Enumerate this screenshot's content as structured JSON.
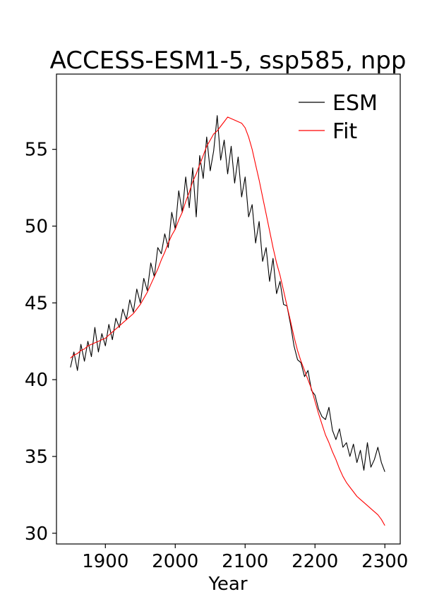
{
  "chart_data": {
    "type": "line",
    "title": "ACCESS-ESM1-5, ssp585, npp",
    "xlabel": "Year",
    "ylabel": "",
    "xlim": [
      1830,
      2322
    ],
    "ylim": [
      29.3,
      59.9
    ],
    "xticks": [
      1900,
      2000,
      2100,
      2200,
      2300
    ],
    "yticks": [
      30,
      35,
      40,
      45,
      50,
      55
    ],
    "grid": false,
    "legend_position": "top-right",
    "series": [
      {
        "name": "ESM",
        "color": "#000000",
        "x": [
          1850,
          1855,
          1860,
          1865,
          1870,
          1875,
          1880,
          1885,
          1890,
          1895,
          1900,
          1905,
          1910,
          1915,
          1920,
          1925,
          1930,
          1935,
          1940,
          1945,
          1950,
          1955,
          1960,
          1965,
          1970,
          1975,
          1980,
          1985,
          1990,
          1995,
          2000,
          2005,
          2010,
          2015,
          2020,
          2025,
          2030,
          2035,
          2040,
          2045,
          2050,
          2055,
          2060,
          2065,
          2070,
          2075,
          2080,
          2085,
          2090,
          2095,
          2100,
          2105,
          2110,
          2115,
          2120,
          2125,
          2130,
          2135,
          2140,
          2145,
          2150,
          2155,
          2160,
          2165,
          2170,
          2175,
          2180,
          2185,
          2190,
          2195,
          2200,
          2205,
          2210,
          2215,
          2220,
          2225,
          2230,
          2235,
          2240,
          2245,
          2250,
          2255,
          2260,
          2265,
          2270,
          2275,
          2280,
          2285,
          2290,
          2295,
          2300
        ],
        "y": [
          40.8,
          41.8,
          40.6,
          42.3,
          41.2,
          42.5,
          41.5,
          43.4,
          41.8,
          43.0,
          42.2,
          43.6,
          42.6,
          44.0,
          43.4,
          44.6,
          43.9,
          45.2,
          44.4,
          45.9,
          45.0,
          46.6,
          45.8,
          47.6,
          46.7,
          48.6,
          48.2,
          49.5,
          48.6,
          50.9,
          49.8,
          52.3,
          50.9,
          53.2,
          51.2,
          53.8,
          50.6,
          54.6,
          53.1,
          55.8,
          53.6,
          54.9,
          57.2,
          54.3,
          55.6,
          53.4,
          55.2,
          52.8,
          54.5,
          51.9,
          53.2,
          50.6,
          51.4,
          48.9,
          50.3,
          47.7,
          48.6,
          46.4,
          47.9,
          45.6,
          46.4,
          44.9,
          44.8,
          43.6,
          42.2,
          41.3,
          41.1,
          40.2,
          40.6,
          39.3,
          39.0,
          38.1,
          37.6,
          37.4,
          38.2,
          36.7,
          36.1,
          36.8,
          35.6,
          35.9,
          35.0,
          35.8,
          34.6,
          35.4,
          34.1,
          35.9,
          34.3,
          34.8,
          35.6,
          34.6,
          34.0
        ]
      },
      {
        "name": "Fit",
        "color": "#ff0000",
        "x": [
          1850,
          1855,
          1860,
          1865,
          1870,
          1875,
          1880,
          1885,
          1890,
          1895,
          1900,
          1905,
          1910,
          1915,
          1920,
          1925,
          1930,
          1935,
          1940,
          1945,
          1950,
          1955,
          1960,
          1965,
          1970,
          1975,
          1980,
          1985,
          1990,
          1995,
          2000,
          2005,
          2010,
          2015,
          2020,
          2025,
          2030,
          2035,
          2040,
          2045,
          2050,
          2055,
          2060,
          2065,
          2070,
          2075,
          2080,
          2085,
          2090,
          2095,
          2100,
          2105,
          2110,
          2115,
          2120,
          2125,
          2130,
          2135,
          2140,
          2145,
          2150,
          2155,
          2160,
          2165,
          2170,
          2175,
          2180,
          2185,
          2190,
          2195,
          2200,
          2205,
          2210,
          2215,
          2220,
          2225,
          2230,
          2235,
          2240,
          2245,
          2250,
          2255,
          2260,
          2265,
          2270,
          2275,
          2280,
          2285,
          2290,
          2295,
          2300
        ],
        "y": [
          41.4,
          41.6,
          41.7,
          41.9,
          42.0,
          42.2,
          42.3,
          42.4,
          42.5,
          42.6,
          42.7,
          42.9,
          43.1,
          43.3,
          43.5,
          43.7,
          43.9,
          44.1,
          44.3,
          44.6,
          44.9,
          45.3,
          45.7,
          46.2,
          46.7,
          47.2,
          47.8,
          48.3,
          48.9,
          49.4,
          49.8,
          50.4,
          50.9,
          51.6,
          52.2,
          52.9,
          53.4,
          54.0,
          54.6,
          55.2,
          55.6,
          56.0,
          56.2,
          56.5,
          56.8,
          57.1,
          57.0,
          56.9,
          56.8,
          56.7,
          56.4,
          55.8,
          55.0,
          54.0,
          53.0,
          51.9,
          50.8,
          49.7,
          48.6,
          47.6,
          46.8,
          45.8,
          44.8,
          43.8,
          42.8,
          41.9,
          41.2,
          40.6,
          40.0,
          39.4,
          38.6,
          37.8,
          37.1,
          36.4,
          35.9,
          35.3,
          34.8,
          34.2,
          33.7,
          33.3,
          33.0,
          32.7,
          32.4,
          32.2,
          32.0,
          31.8,
          31.6,
          31.4,
          31.2,
          30.9,
          30.5
        ]
      }
    ]
  }
}
